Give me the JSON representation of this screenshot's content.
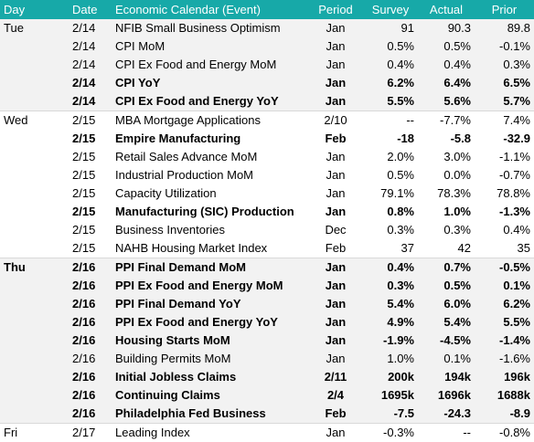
{
  "table": {
    "header": [
      "Day",
      "Date",
      "Economic Calendar (Event)",
      "Period",
      "Survey",
      "Actual",
      "Prior"
    ],
    "rows": [
      {
        "cells": [
          "Tue",
          "2/14",
          "NFIB Small Business Optimism",
          "Jan",
          "91",
          "90.3",
          "89.8"
        ]
      },
      {
        "cells": [
          null,
          "2/14",
          "CPI MoM",
          "Jan",
          "0.5%",
          "0.5%",
          "-0.1%"
        ]
      },
      {
        "cells": [
          null,
          "2/14",
          "CPI Ex Food and Energy MoM",
          "Jan",
          "0.4%",
          "0.4%",
          "0.3%"
        ]
      },
      {
        "bold": true,
        "cells": [
          null,
          "2/14",
          "CPI YoY",
          "Jan",
          "6.2%",
          "6.4%",
          "6.5%"
        ]
      },
      {
        "bold": true,
        "cells": [
          null,
          "2/14",
          "CPI Ex Food and Energy YoY",
          "Jan",
          "5.5%",
          "5.6%",
          "5.7%"
        ]
      },
      {
        "cells": [
          "Wed",
          "2/15",
          "MBA Mortgage Applications",
          "2/10",
          "--",
          "-7.7%",
          "7.4%"
        ]
      },
      {
        "bold": true,
        "cells": [
          null,
          "2/15",
          "Empire Manufacturing",
          "Feb",
          "-18",
          "-5.8",
          "-32.9"
        ]
      },
      {
        "cells": [
          null,
          "2/15",
          "Retail Sales Advance MoM",
          "Jan",
          "2.0%",
          "3.0%",
          "-1.1%"
        ]
      },
      {
        "cells": [
          null,
          "2/15",
          "Industrial Production MoM",
          "Jan",
          "0.5%",
          "0.0%",
          "-0.7%"
        ]
      },
      {
        "cells": [
          null,
          "2/15",
          "Capacity Utilization",
          "Jan",
          "79.1%",
          "78.3%",
          "78.8%"
        ]
      },
      {
        "bold": true,
        "cells": [
          null,
          "2/15",
          "Manufacturing (SIC) Production",
          "Jan",
          "0.8%",
          "1.0%",
          "-1.3%"
        ]
      },
      {
        "cells": [
          null,
          "2/15",
          "Business Inventories",
          "Dec",
          "0.3%",
          "0.3%",
          "0.4%"
        ]
      },
      {
        "cells": [
          null,
          "2/15",
          "NAHB Housing Market Index",
          "Feb",
          "37",
          "42",
          "35"
        ]
      },
      {
        "bold": true,
        "cells": [
          "Thu",
          "2/16",
          "PPI Final Demand MoM",
          "Jan",
          "0.4%",
          "0.7%",
          "-0.5%"
        ]
      },
      {
        "bold": true,
        "cells": [
          null,
          "2/16",
          "PPI Ex Food and Energy MoM",
          "Jan",
          "0.3%",
          "0.5%",
          "0.1%"
        ]
      },
      {
        "bold": true,
        "cells": [
          null,
          "2/16",
          "PPI Final Demand YoY",
          "Jan",
          "5.4%",
          "6.0%",
          "6.2%"
        ]
      },
      {
        "bold": true,
        "cells": [
          null,
          "2/16",
          "PPI Ex Food and Energy YoY",
          "Jan",
          "4.9%",
          "5.4%",
          "5.5%"
        ]
      },
      {
        "bold": true,
        "cells": [
          null,
          "2/16",
          "Housing Starts MoM",
          "Jan",
          "-1.9%",
          "-4.5%",
          "-1.4%"
        ]
      },
      {
        "cells": [
          null,
          "2/16",
          "Building Permits MoM",
          "Jan",
          "1.0%",
          "0.1%",
          "-1.6%"
        ]
      },
      {
        "bold": true,
        "cells": [
          null,
          "2/16",
          "Initial Jobless Claims",
          "2/11",
          "200k",
          "194k",
          "196k"
        ]
      },
      {
        "bold": true,
        "cells": [
          null,
          "2/16",
          "Continuing Claims",
          "2/4",
          "1695k",
          "1696k",
          "1688k"
        ]
      },
      {
        "bold": true,
        "cells": [
          null,
          "2/16",
          "Philadelphia Fed Business",
          "Feb",
          "-7.5",
          "-24.3",
          "-8.9"
        ]
      },
      {
        "cells": [
          "Fri",
          "2/17",
          "Leading Index",
          "Jan",
          "-0.3%",
          "--",
          "-0.8%"
        ]
      }
    ]
  }
}
